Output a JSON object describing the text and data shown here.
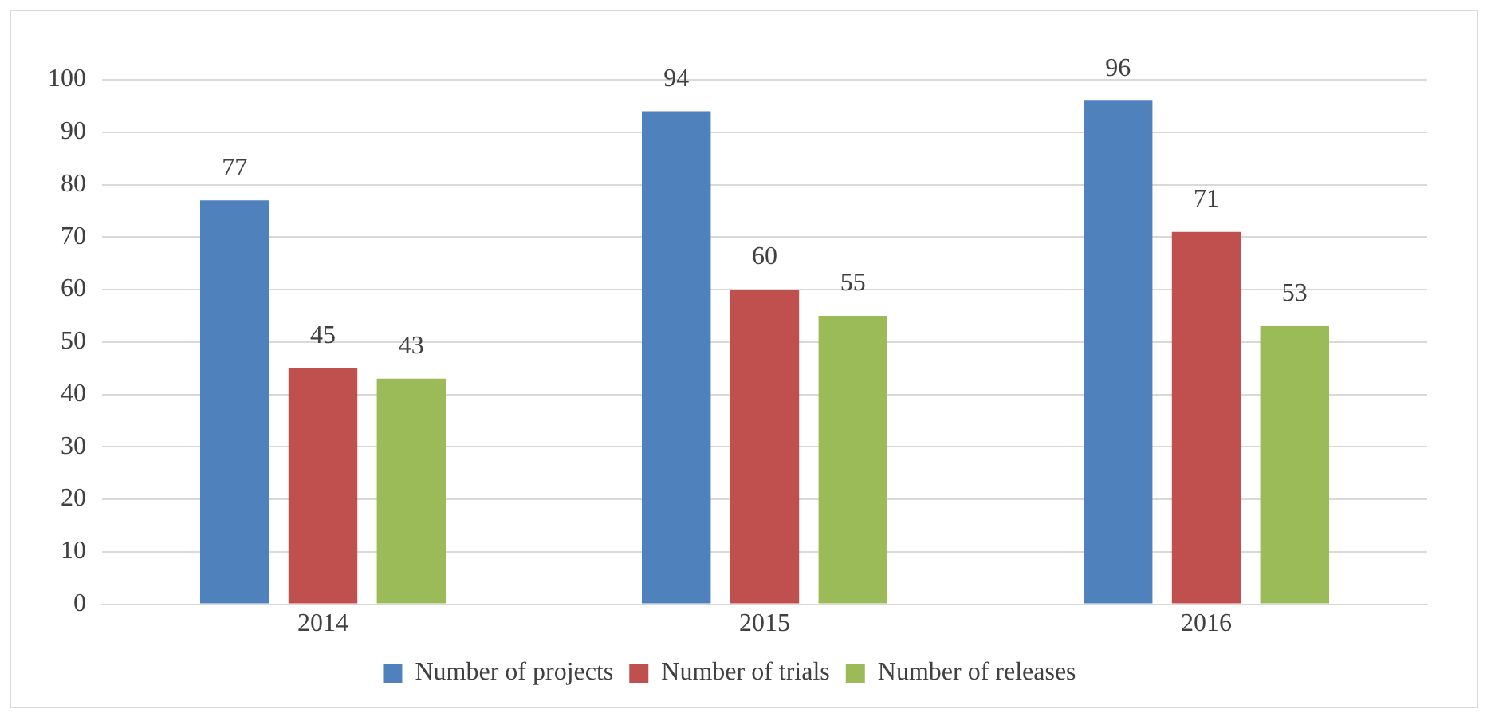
{
  "chart_data": {
    "type": "bar",
    "categories": [
      "2014",
      "2015",
      "2016"
    ],
    "series": [
      {
        "name": "Number of projects",
        "color": "#4f81bd",
        "values": [
          77,
          94,
          96
        ]
      },
      {
        "name": "Number of trials",
        "color": "#c0504d",
        "values": [
          45,
          60,
          71
        ]
      },
      {
        "name": "Number of releases",
        "color": "#9bbb59",
        "values": [
          43,
          55,
          53
        ]
      }
    ],
    "ylim": [
      0,
      100
    ],
    "yticks": [
      0,
      10,
      20,
      30,
      40,
      50,
      60,
      70,
      80,
      90,
      100
    ],
    "grid": "y",
    "legend": "bottom",
    "data_labels": true
  }
}
